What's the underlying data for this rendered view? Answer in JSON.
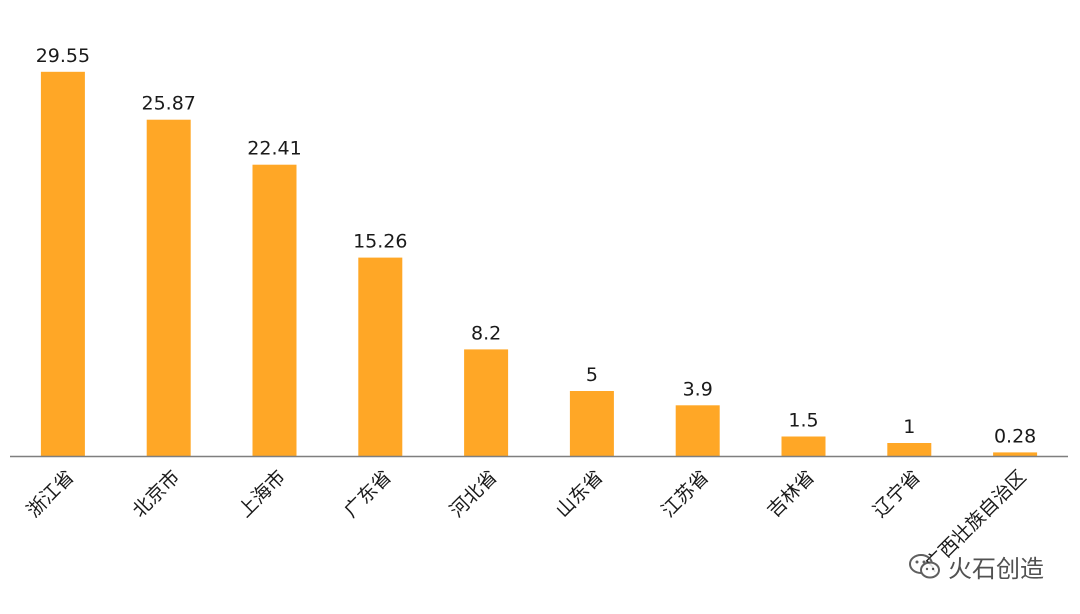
{
  "chart_data": {
    "type": "bar",
    "categories": [
      "浙江省",
      "北京市",
      "上海市",
      "广东省",
      "河北省",
      "山东省",
      "江苏省",
      "吉林省",
      "辽宁省",
      "广西壮族自治区"
    ],
    "values": [
      29.55,
      25.87,
      22.41,
      15.26,
      8.2,
      5,
      3.9,
      1.5,
      1,
      0.28
    ],
    "value_labels": [
      "29.55",
      "25.87",
      "22.41",
      "15.26",
      "8.2",
      "5",
      "3.9",
      "1.5",
      "1",
      "0.28"
    ],
    "title": "",
    "xlabel": "",
    "ylabel": "",
    "ylim": [
      0,
      32
    ],
    "grid": false,
    "legend": "none",
    "bar_color": "#FFA726",
    "axis_color": "#7f7f7f"
  },
  "watermark": {
    "icon": "wechat-icon",
    "text": "火石创造"
  }
}
